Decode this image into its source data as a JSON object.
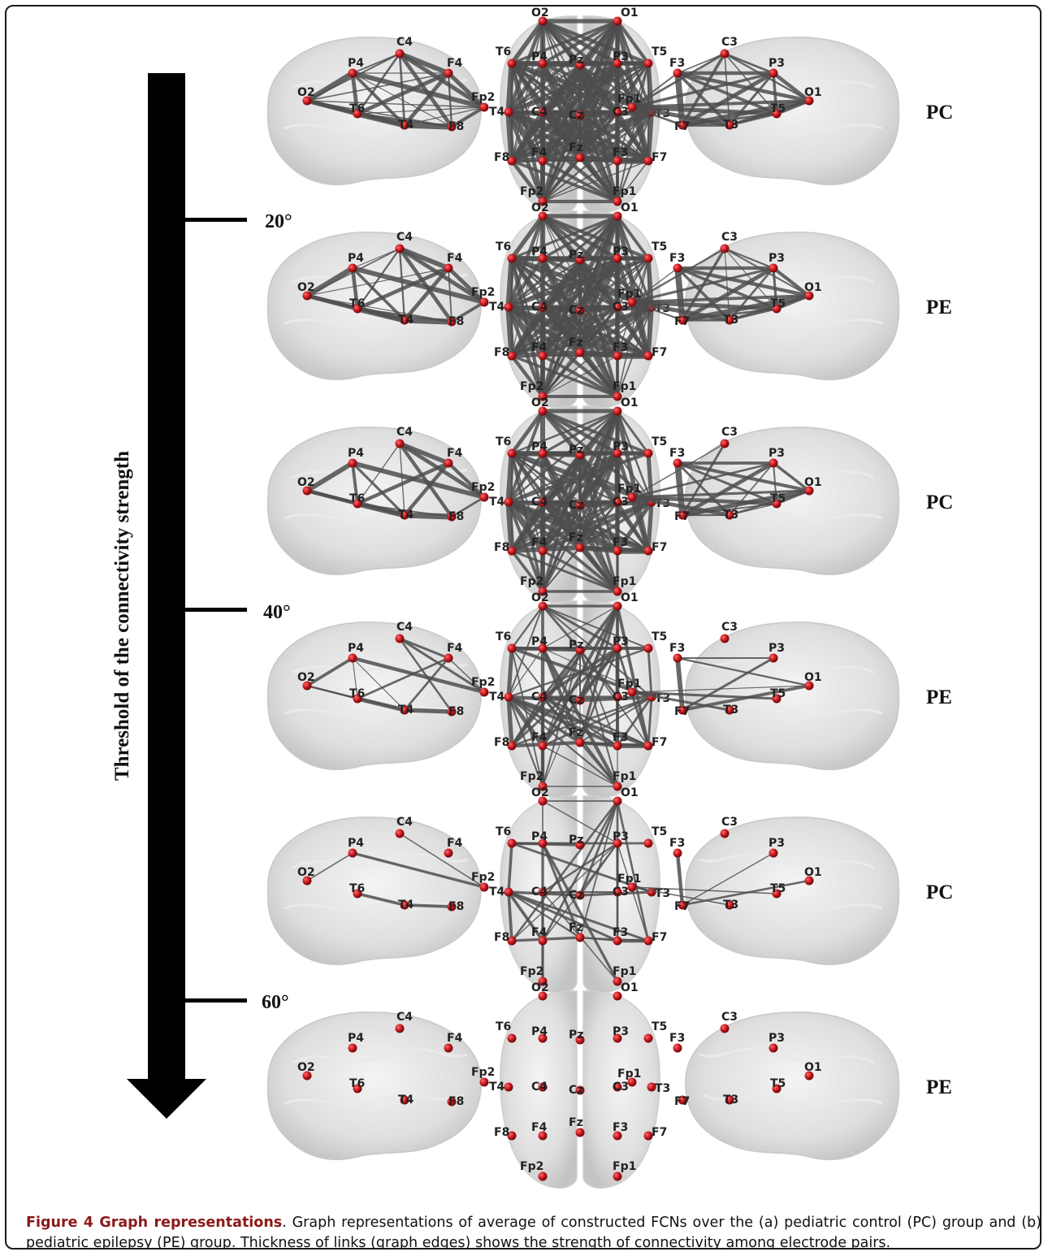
{
  "figure": {
    "title": "Figure 4 Graph representations",
    "caption": ". Graph representations of average of constructed FCNs over the (a) pediatric control (PC) group and (b) pediatric epilepsy (PE) group. Thickness of links (graph edges) shows the strength of connectivity among electrode pairs."
  },
  "axis": {
    "label": "Threshold of the connectivity strength",
    "ticks": [
      "20°",
      "40°",
      "60°"
    ]
  },
  "rows": [
    {
      "group": "PC",
      "density": 1.0
    },
    {
      "group": "PE",
      "density": 0.9
    },
    {
      "group": "PC",
      "density": 0.72
    },
    {
      "group": "PE",
      "density": 0.42
    },
    {
      "group": "PC",
      "density": 0.22
    },
    {
      "group": "PE",
      "density": 0.0
    }
  ],
  "views": {
    "right_hemisphere": [
      "O2",
      "P4",
      "C4",
      "F4",
      "Fp2",
      "T6",
      "T4",
      "F8"
    ],
    "top": [
      "O2",
      "O1",
      "T6",
      "P4",
      "Pz",
      "P3",
      "T5",
      "T4",
      "C4",
      "Cz",
      "C3",
      "T3",
      "F8",
      "F4",
      "Fz",
      "F3",
      "F7",
      "Fp2",
      "Fp1"
    ],
    "left_hemisphere": [
      "F3",
      "C3",
      "P3",
      "O1",
      "Fp1",
      "F7",
      "T3",
      "T5"
    ]
  },
  "colors": {
    "node": "#c0141a",
    "edge": "#4d4d4d",
    "brain": "#d8d8d8",
    "caption_title": "#8b1a1a"
  }
}
